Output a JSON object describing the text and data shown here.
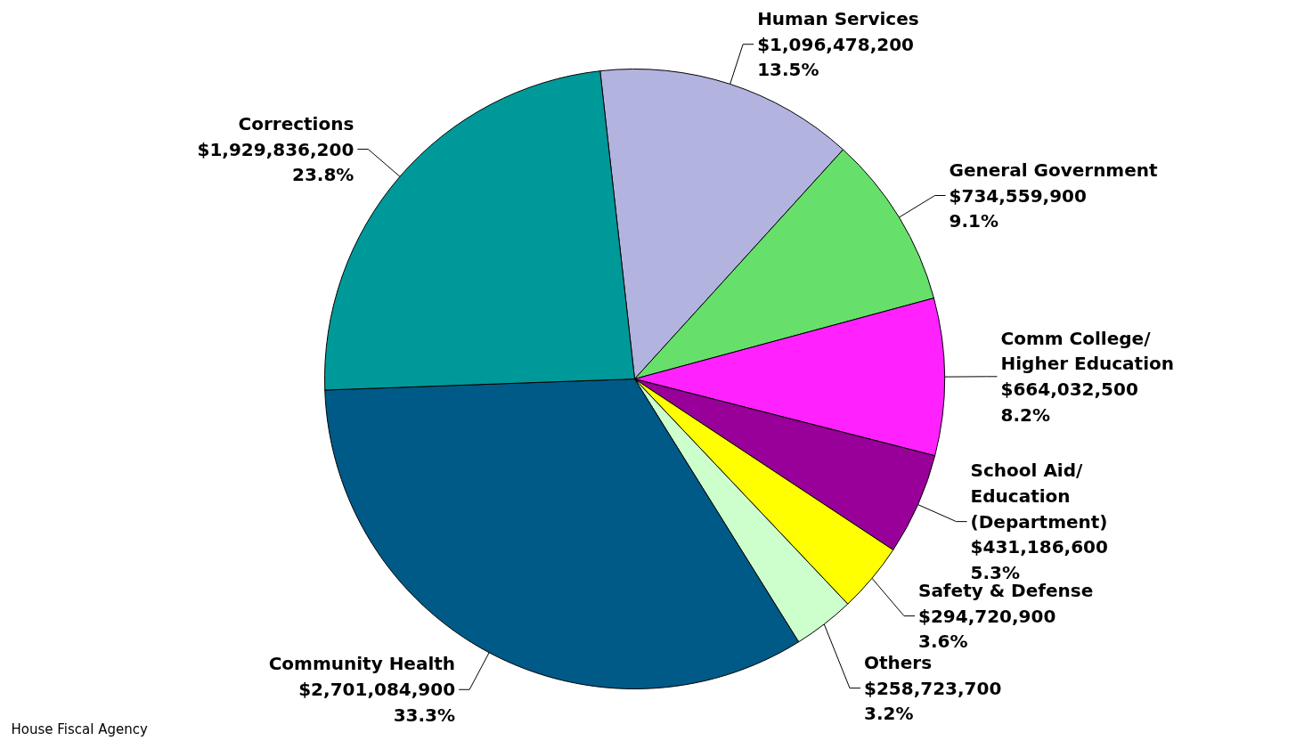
{
  "chart_data": {
    "type": "pie",
    "categories": [
      "Human Services",
      "General Government",
      "Comm College/\nHigher Education",
      "School Aid/\nEducation\n(Department)",
      "Safety & Defense",
      "Others",
      "Community Health",
      "Corrections"
    ],
    "values": [
      1096478200,
      734559900,
      664032500,
      431186600,
      294720900,
      258723700,
      2701084900,
      1929836200
    ],
    "colors": [
      "#b3b3e0",
      "#66e06a",
      "#ff22ff",
      "#990099",
      "#ffff00",
      "#ccffcc",
      "#005a87",
      "#009999"
    ],
    "value_labels": [
      "$1,096,478,200\n13.5%",
      "$734,559,900\n9.1%",
      "$664,032,500\n8.2%",
      "$431,186,600\n5.3%",
      "$294,720,900\n3.6%",
      "$258,723,700\n3.2%",
      "$2,701,084,900\n33.3%",
      "$1,929,836,200\n23.8%"
    ],
    "annotations": [
      "House Fiscal Agency"
    ]
  }
}
